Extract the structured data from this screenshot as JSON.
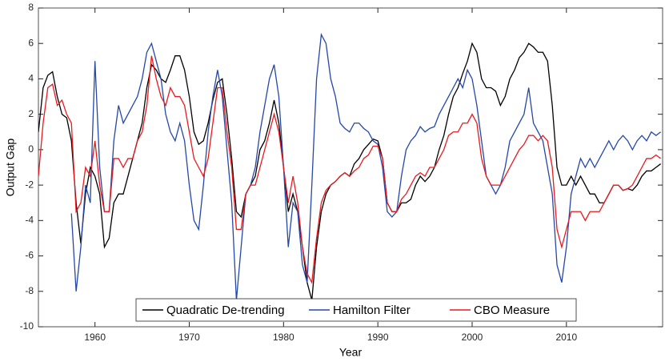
{
  "chart_data": {
    "type": "line",
    "xlabel": "Year",
    "ylabel": "Output Gap",
    "x": [
      1954,
      1954.5,
      1955,
      1955.5,
      1956,
      1956.5,
      1957,
      1957.5,
      1958,
      1958.5,
      1959,
      1959.5,
      1960,
      1960.5,
      1961,
      1961.5,
      1962,
      1962.5,
      1963,
      1963.5,
      1964,
      1964.5,
      1965,
      1965.5,
      1966,
      1966.5,
      1967,
      1967.5,
      1968,
      1968.5,
      1969,
      1969.5,
      1970,
      1970.5,
      1971,
      1971.5,
      1972,
      1972.5,
      1973,
      1973.5,
      1974,
      1974.5,
      1975,
      1975.5,
      1976,
      1976.5,
      1977,
      1977.5,
      1978,
      1978.5,
      1979,
      1979.5,
      1980,
      1980.5,
      1981,
      1981.5,
      1982,
      1982.5,
      1983,
      1983.5,
      1984,
      1984.5,
      1985,
      1985.5,
      1986,
      1986.5,
      1987,
      1987.5,
      1988,
      1988.5,
      1989,
      1989.5,
      1990,
      1990.5,
      1991,
      1991.5,
      1992,
      1992.5,
      1993,
      1993.5,
      1994,
      1994.5,
      1995,
      1995.5,
      1996,
      1996.5,
      1997,
      1997.5,
      1998,
      1998.5,
      1999,
      1999.5,
      2000,
      2000.5,
      2001,
      2001.5,
      2002,
      2002.5,
      2003,
      2003.5,
      2004,
      2004.5,
      2005,
      2005.5,
      2006,
      2006.5,
      2007,
      2007.5,
      2008,
      2008.5,
      2009,
      2009.5,
      2010,
      2010.5,
      2011,
      2011.5,
      2012,
      2012.5,
      2013,
      2013.5,
      2014,
      2014.5,
      2015,
      2015.5,
      2016,
      2016.5,
      2017,
      2017.5,
      2018,
      2018.5,
      2019,
      2019.5,
      2020
    ],
    "series": [
      {
        "name": "Quadratic De-trending",
        "color": "#000000",
        "values": [
          1,
          3.5,
          4.2,
          4.4,
          3.0,
          2.0,
          1.8,
          0.5,
          -3.0,
          -5.3,
          -2.5,
          -1.0,
          -1.5,
          -2.5,
          -5.5,
          -5.0,
          -3.0,
          -2.5,
          -2.5,
          -1.5,
          -0.5,
          0.5,
          1.5,
          3.5,
          4.8,
          4.5,
          4.0,
          3.8,
          4.5,
          5.3,
          5.3,
          4.5,
          3.0,
          1.0,
          0.3,
          0.5,
          1.5,
          2.8,
          3.8,
          4.0,
          2.0,
          -0.5,
          -3.5,
          -3.8,
          -2.5,
          -2.0,
          -1.5,
          0.0,
          0.5,
          1.5,
          2.8,
          1.5,
          -1.0,
          -3.5,
          -2.5,
          -3.5,
          -5.5,
          -7.5,
          -8.5,
          -5.5,
          -3.5,
          -2.5,
          -2.0,
          -1.8,
          -1.5,
          -1.3,
          -1.5,
          -0.8,
          -0.5,
          0.0,
          0.3,
          0.6,
          0.5,
          -0.5,
          -3.0,
          -3.5,
          -3.5,
          -3.0,
          -3.0,
          -2.8,
          -2.0,
          -1.5,
          -1.8,
          -1.5,
          -1.0,
          0.0,
          0.8,
          2.0,
          3.0,
          3.5,
          4.3,
          5.0,
          6.0,
          5.5,
          4.0,
          3.5,
          3.5,
          3.3,
          2.5,
          3.0,
          4.0,
          4.5,
          5.2,
          5.5,
          6.0,
          5.8,
          5.5,
          5.5,
          5.0,
          2.5,
          -1.0,
          -2.0,
          -2.0,
          -1.5,
          -2.0,
          -1.5,
          -2.0,
          -2.5,
          -2.5,
          -3.0,
          -3.0,
          -2.5,
          -2.0,
          -2.0,
          -2.3,
          -2.2,
          -2.3,
          -2.0,
          -1.5,
          -1.2,
          -1.2,
          -1.0,
          -0.8
        ]
      },
      {
        "name": "Hamilton Filter",
        "color": "#2447a8",
        "values": [
          null,
          null,
          null,
          null,
          null,
          null,
          null,
          -3.6,
          -8.0,
          -5.5,
          -2.0,
          -3.0,
          5.0,
          -1.0,
          -3.5,
          -3.5,
          0.5,
          2.5,
          1.5,
          2.0,
          2.5,
          3.0,
          4.0,
          5.5,
          6.0,
          5.0,
          4.0,
          2.0,
          1.0,
          0.5,
          1.5,
          0.5,
          -2.0,
          -4.0,
          -4.5,
          -2.0,
          1.0,
          3.0,
          4.5,
          3.0,
          0.0,
          -3.0,
          -8.5,
          -5.5,
          -2.5,
          -2.0,
          -1.0,
          1.0,
          2.5,
          4.0,
          4.8,
          3.0,
          -1.0,
          -5.5,
          -3.0,
          -3.5,
          -6.5,
          -7.5,
          -2.0,
          4.0,
          6.5,
          6.0,
          4.0,
          3.0,
          1.5,
          1.2,
          1.0,
          1.5,
          1.5,
          1.2,
          1.0,
          0.5,
          0.3,
          -1.0,
          -3.5,
          -3.8,
          -3.5,
          -1.5,
          0.0,
          0.5,
          0.8,
          1.3,
          1.0,
          1.2,
          1.3,
          2.0,
          2.5,
          3.0,
          3.5,
          4.0,
          3.5,
          4.5,
          4.0,
          2.5,
          0.5,
          -1.5,
          -2.0,
          -2.5,
          -2.0,
          -1.0,
          0.5,
          1.0,
          1.5,
          2.0,
          3.5,
          1.5,
          1.0,
          0.5,
          -1.0,
          -2.5,
          -6.5,
          -7.5,
          -5.5,
          -2.5,
          -1.5,
          -0.5,
          -1.0,
          -0.5,
          -1.0,
          -0.5,
          0.0,
          0.5,
          0.0,
          0.5,
          0.8,
          0.5,
          0.0,
          0.5,
          0.8,
          0.5,
          1.0,
          0.8,
          1.0
        ]
      },
      {
        "name": "CBO Measure",
        "color": "#e8191f",
        "values": [
          -1.5,
          1.5,
          3.5,
          3.7,
          2.5,
          2.8,
          2.0,
          1.5,
          -3.5,
          -3.0,
          -1.0,
          -1.5,
          0.5,
          -2.0,
          -3.5,
          -3.5,
          -0.5,
          -0.5,
          -1.0,
          -0.5,
          -0.5,
          0.5,
          1.0,
          2.5,
          5.3,
          4.0,
          3.0,
          2.5,
          3.5,
          3.0,
          3.0,
          2.5,
          1.0,
          -0.5,
          -1.0,
          -1.5,
          -0.5,
          1.5,
          3.5,
          3.5,
          1.0,
          -1.0,
          -4.5,
          -4.5,
          -2.5,
          -2.0,
          -2.0,
          -1.0,
          0.0,
          1.0,
          2.0,
          1.0,
          -1.0,
          -3.0,
          -1.5,
          -3.0,
          -5.5,
          -7.0,
          -7.5,
          -5.0,
          -3.0,
          -2.3,
          -2.0,
          -1.8,
          -1.5,
          -1.3,
          -1.5,
          -1.2,
          -1.0,
          -0.5,
          -0.3,
          0.2,
          0.2,
          -0.5,
          -3.0,
          -3.5,
          -3.5,
          -2.8,
          -2.5,
          -2.0,
          -1.5,
          -1.3,
          -1.5,
          -1.0,
          -1.0,
          -0.5,
          0.0,
          0.8,
          1.0,
          1.0,
          1.5,
          1.5,
          2.0,
          1.5,
          -0.5,
          -1.5,
          -2.0,
          -2.0,
          -2.0,
          -1.5,
          -1.0,
          -0.5,
          0.0,
          0.3,
          0.8,
          0.8,
          0.5,
          0.8,
          0.5,
          -1.0,
          -4.5,
          -5.5,
          -4.5,
          -3.5,
          -3.5,
          -3.5,
          -4.0,
          -3.5,
          -3.5,
          -3.5,
          -3.0,
          -2.5,
          -2.0,
          -2.0,
          -2.3,
          -2.2,
          -2.0,
          -1.5,
          -1.0,
          -0.5,
          -0.5,
          -0.3,
          -0.5
        ]
      }
    ],
    "xlim": [
      1954,
      2020.2
    ],
    "xticks": [
      1960,
      1970,
      1980,
      1990,
      2000,
      2010
    ],
    "ylim": [
      -10,
      8
    ],
    "yticks": [
      -10,
      -8,
      -6,
      -4,
      -2,
      0,
      2,
      4,
      6,
      8
    ],
    "legend": "bottom"
  }
}
